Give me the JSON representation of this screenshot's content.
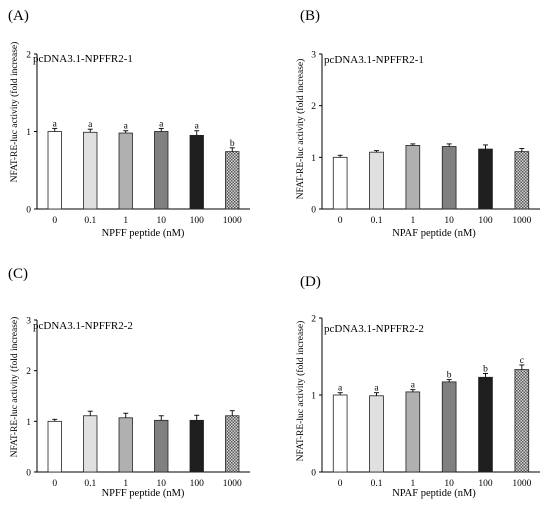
{
  "colors": {
    "axis": "#000000",
    "bars": [
      "#ffffff",
      "#e0e0e0",
      "#b0b0b0",
      "#808080",
      "#1e1e1e",
      "#c8c8c8"
    ],
    "bar_edge": "#222222",
    "hatch": "checkered pattern on 1000 nM bar"
  },
  "chart_data": [
    {
      "type": "bar",
      "panel_label": "(A)",
      "annotation": "pcDNA3.1-NPFFR2-1",
      "categories": [
        "0",
        "0.1",
        "1",
        "10",
        "100",
        "1000"
      ],
      "values": [
        1.0,
        0.99,
        0.98,
        1.0,
        0.95,
        0.74
      ],
      "errors": [
        0.04,
        0.04,
        0.03,
        0.04,
        0.06,
        0.05
      ],
      "significance": [
        "a",
        "a",
        "a",
        "a",
        "a",
        "b"
      ],
      "xlabel": "NPFF peptide (nM)",
      "ylabel": "NFAT-RE-luc activity (fold increase)",
      "ylim": [
        0,
        2
      ],
      "yticks": [
        "0",
        "1",
        "2"
      ]
    },
    {
      "type": "bar",
      "panel_label": "(B)",
      "annotation": "pcDNA3.1-NPFFR2-1",
      "categories": [
        "0",
        "0.1",
        "1",
        "10",
        "100",
        "1000"
      ],
      "values": [
        1.0,
        1.1,
        1.23,
        1.21,
        1.16,
        1.11
      ],
      "errors": [
        0.04,
        0.03,
        0.03,
        0.05,
        0.08,
        0.06
      ],
      "significance": [
        "",
        "",
        "",
        "",
        "",
        ""
      ],
      "xlabel": "NPAF peptide (nM)",
      "ylabel": "NFAT-RE-luc activity (fold increase)",
      "ylim": [
        0,
        3
      ],
      "yticks": [
        "0",
        "1",
        "2",
        "3"
      ]
    },
    {
      "type": "bar",
      "panel_label": "(C)",
      "annotation": "pcDNA3.1-NPFFR2-2",
      "categories": [
        "0",
        "0.1",
        "1",
        "10",
        "100",
        "1000"
      ],
      "values": [
        1.0,
        1.11,
        1.07,
        1.02,
        1.02,
        1.11
      ],
      "errors": [
        0.04,
        0.09,
        0.09,
        0.09,
        0.1,
        0.1
      ],
      "significance": [
        "",
        "",
        "",
        "",
        "",
        ""
      ],
      "xlabel": "NPFF peptide (nM)",
      "ylabel": "NFAT-RE-luc activity (fold increase)",
      "ylim": [
        0,
        3
      ],
      "yticks": [
        "0",
        "1",
        "2",
        "3"
      ]
    },
    {
      "type": "bar",
      "panel_label": "(D)",
      "annotation": "pcDNA3.1-NPFFR2-2",
      "categories": [
        "0",
        "0.1",
        "1",
        "10",
        "100",
        "1000"
      ],
      "values": [
        1.0,
        0.99,
        1.04,
        1.17,
        1.23,
        1.33
      ],
      "errors": [
        0.03,
        0.04,
        0.03,
        0.03,
        0.05,
        0.06
      ],
      "significance": [
        "a",
        "a",
        "a",
        "b",
        "b",
        "c"
      ],
      "xlabel": "NPAF peptide (nM)",
      "ylabel": "NFAT-RE-luc activity (fold increase)",
      "ylim": [
        0,
        2
      ],
      "yticks": [
        "0",
        "1",
        "2"
      ]
    }
  ]
}
